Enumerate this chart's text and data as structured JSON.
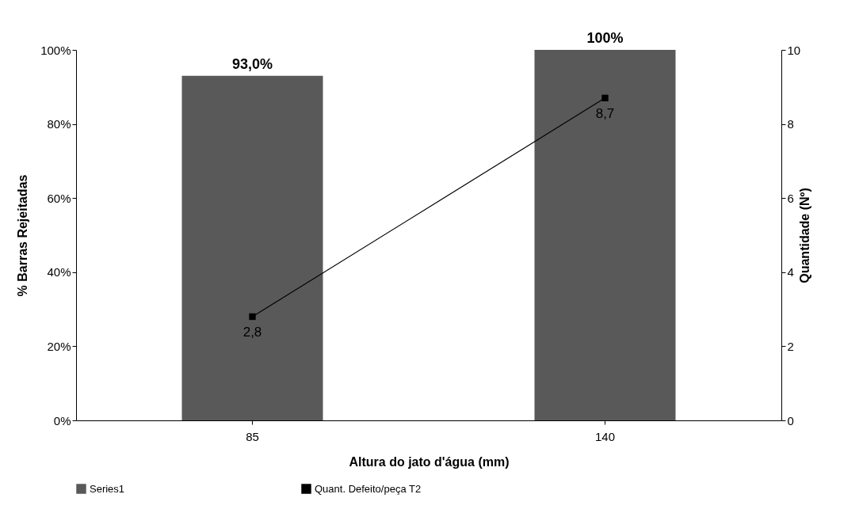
{
  "chart_data": {
    "type": "bar",
    "xlabel": "Altura do jato d'água (mm)",
    "ylabel": "% Barras Rejeitadas",
    "y2label": "Quantidade (Nº)",
    "categories": [
      "85",
      "140"
    ],
    "series": [
      {
        "name": "Series1",
        "color": "#595959",
        "values": [
          93.0,
          100
        ],
        "value_labels": [
          "93,0%",
          "100%"
        ]
      },
      {
        "name": "Quant. Defeito/peça T2",
        "type": "line",
        "axis": "y2",
        "color": "#000000",
        "values": [
          2.8,
          8.7
        ],
        "value_labels": [
          "2,8",
          "8,7"
        ]
      }
    ],
    "ylim": [
      0,
      100
    ],
    "yticks": [
      {
        "value": 0,
        "label": "0%"
      },
      {
        "value": 20,
        "label": "20%"
      },
      {
        "value": 40,
        "label": "40%"
      },
      {
        "value": 60,
        "label": "60%"
      },
      {
        "value": 80,
        "label": "80%"
      },
      {
        "value": 100,
        "label": "100%"
      }
    ],
    "y2lim": [
      0,
      10
    ],
    "y2ticks": [
      0,
      2,
      4,
      6,
      8,
      10
    ],
    "grid": false,
    "legend": "bottom",
    "marker": "square",
    "line_style": "solid"
  }
}
